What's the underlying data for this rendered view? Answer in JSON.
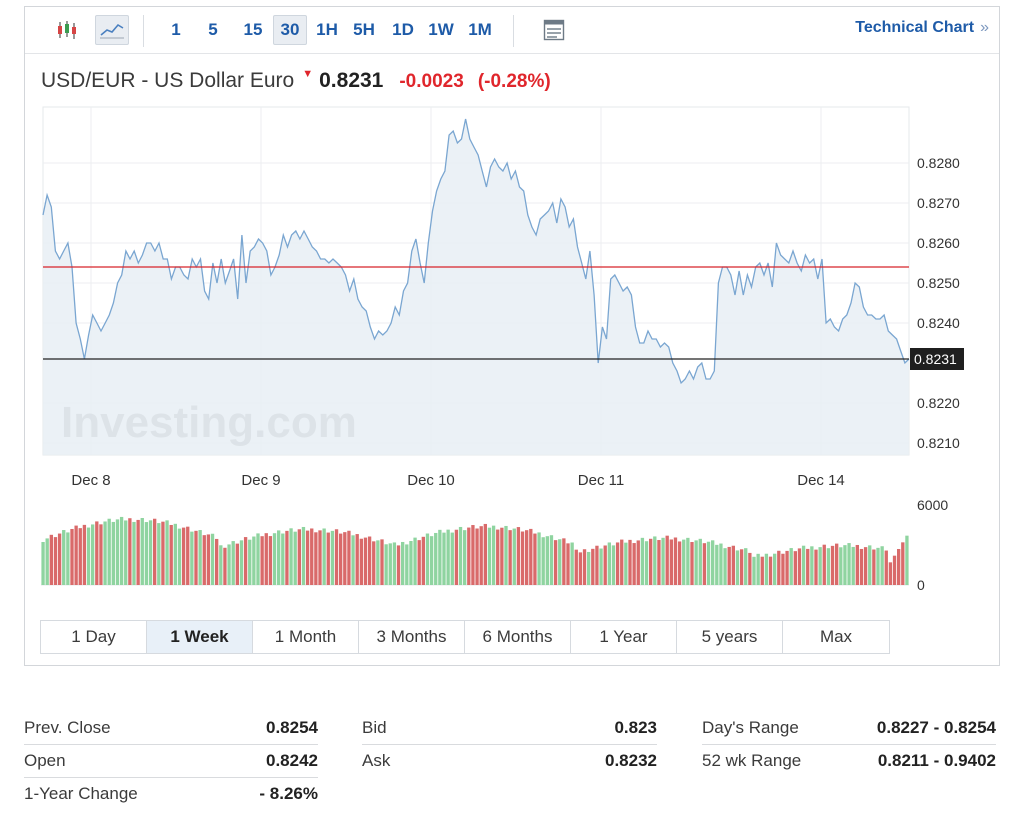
{
  "toolbar": {
    "icons": [
      "candlestick-icon",
      "line-chart-icon"
    ],
    "intervals": [
      "1",
      "5",
      "15",
      "30",
      "1H",
      "5H",
      "1D",
      "1W",
      "1M"
    ],
    "active_interval": "30",
    "table_icon": "table-icon",
    "technical_label": "Technical Chart",
    "technical_chevron": "»"
  },
  "header": {
    "pair": "USD/EUR - US Dollar Euro",
    "last": "0.8231",
    "change": "-0.0023",
    "change_pct": "(-0.28%)"
  },
  "colors": {
    "price_line": "#7aa6d1",
    "price_fill": "#e7eef5",
    "prev_close_line": "#d8242b",
    "current_line": "#222222",
    "volume_up": "#8fd4a0",
    "volume_down": "#d96a6a"
  },
  "watermark": "Investing.com",
  "chart_data": {
    "type": "line",
    "x_labels": [
      "Dec 8",
      "Dec 9",
      "Dec 10",
      "Dec 11",
      "Dec 14"
    ],
    "ylim": [
      0.8207,
      0.8294
    ],
    "y_ticks": [
      "0.8280",
      "0.8270",
      "0.8260",
      "0.8250",
      "0.8240",
      "0.8220",
      "0.8210"
    ],
    "current_value": "0.8231",
    "prev_close": 0.8254,
    "grid": true,
    "series": [
      {
        "values": [
          0.8267,
          0.8272,
          0.8269,
          0.8258,
          0.8256,
          0.8258,
          0.826,
          0.8254,
          0.824,
          0.8236,
          0.8231,
          0.8237,
          0.8242,
          0.824,
          0.8238,
          0.824,
          0.8242,
          0.8245,
          0.825,
          0.8252,
          0.8258,
          0.8256,
          0.8258,
          0.8255,
          0.8257,
          0.826,
          0.826,
          0.8258,
          0.826,
          0.8256,
          0.8256,
          0.8251,
          0.8254,
          0.8254,
          0.8252,
          0.8251,
          0.8256,
          0.8254,
          0.8256,
          0.8248,
          0.8246,
          0.8255,
          0.825,
          0.8256,
          0.825,
          0.8253,
          0.8256,
          0.8246,
          0.8262,
          0.825,
          0.8258,
          0.8259,
          0.8261,
          0.826,
          0.8258,
          0.8252,
          0.8254,
          0.8257,
          0.8262,
          0.8259,
          0.8262,
          0.8263,
          0.8261,
          0.8263,
          0.8261,
          0.8259,
          0.8258,
          0.8256,
          0.8256,
          0.8255,
          0.8256,
          0.8255,
          0.8254,
          0.8252,
          0.8248,
          0.8251,
          0.8246,
          0.8244,
          0.8243,
          0.8239,
          0.8236,
          0.8238,
          0.8237,
          0.8238,
          0.824,
          0.8244,
          0.8242,
          0.8248,
          0.825,
          0.8258,
          0.8261,
          0.8255,
          0.825,
          0.826,
          0.8268,
          0.8273,
          0.8276,
          0.8278,
          0.8287,
          0.8288,
          0.8285,
          0.8286,
          0.8291,
          0.8286,
          0.8284,
          0.8282,
          0.8278,
          0.8274,
          0.8279,
          0.8281,
          0.8279,
          0.8278,
          0.828,
          0.8276,
          0.8278,
          0.8274,
          0.8273,
          0.8267,
          0.8264,
          0.8262,
          0.8266,
          0.8267,
          0.8268,
          0.827,
          0.8265,
          0.8271,
          0.8269,
          0.8264,
          0.8266,
          0.8259,
          0.8255,
          0.8251,
          0.8258,
          0.8247,
          0.823,
          0.8239,
          0.8236,
          0.8251,
          0.8252,
          0.825,
          0.8248,
          0.8249,
          0.8247,
          0.8239,
          0.8235,
          0.8235,
          0.8238,
          0.8236,
          0.8236,
          0.8234,
          0.8235,
          0.8234,
          0.823,
          0.8228,
          0.8225,
          0.8226,
          0.8228,
          0.8226,
          0.8229,
          0.823,
          0.8226,
          0.8226,
          0.8228,
          0.825,
          0.8254,
          0.8254,
          0.8252,
          0.8247,
          0.8253,
          0.8247,
          0.8252,
          0.8249,
          0.8254,
          0.8255,
          0.8252,
          0.8255,
          0.8249,
          0.826,
          0.8257,
          0.8256,
          0.8255,
          0.8258,
          0.8255,
          0.8253,
          0.8257,
          0.8255,
          0.8256,
          0.8251,
          0.8256,
          0.824,
          0.8241,
          0.8239,
          0.8238,
          0.8241,
          0.8242,
          0.8245,
          0.825,
          0.8249,
          0.8244,
          0.8242,
          0.8242,
          0.8241,
          0.8241,
          0.8242,
          0.8238,
          0.8237,
          0.8236,
          0.8233,
          0.823,
          0.8231
        ]
      }
    ],
    "volume": {
      "ylim": [
        0,
        6000
      ],
      "y_ticks": [
        "6000",
        "0"
      ]
    }
  },
  "range_buttons": [
    "1 Day",
    "1 Week",
    "1 Month",
    "3 Months",
    "6 Months",
    "1 Year",
    "5 years",
    "Max"
  ],
  "active_range": "1 Week",
  "stats": [
    [
      {
        "label": "Prev. Close",
        "value": "0.8254"
      },
      {
        "label": "Open",
        "value": "0.8242"
      },
      {
        "label": "1-Year Change",
        "value": "- 8.26%"
      }
    ],
    [
      {
        "label": "Bid",
        "value": "0.823"
      },
      {
        "label": "Ask",
        "value": "0.8232"
      }
    ],
    [
      {
        "label": "Day's Range",
        "value": "0.8227 - 0.8254"
      },
      {
        "label": "52 wk Range",
        "value": "0.8211 - 0.9402"
      }
    ]
  ]
}
